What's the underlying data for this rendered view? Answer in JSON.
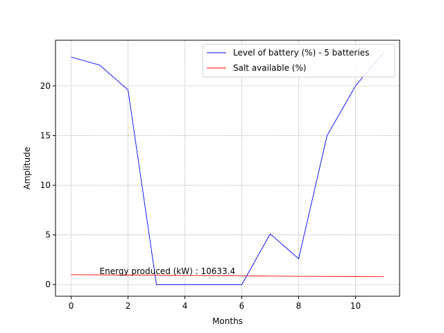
{
  "chart_data": {
    "type": "line",
    "x": [
      0,
      1,
      2,
      3,
      4,
      5,
      6,
      7,
      8,
      9,
      10,
      11
    ],
    "series": [
      {
        "name": "Level of battery (%) - 5 batteries",
        "color": "#0000ff",
        "values": [
          22.9,
          22.1,
          19.6,
          0.0,
          0.0,
          0.0,
          0.0,
          5.1,
          2.6,
          15.0,
          20.0,
          23.4
        ]
      },
      {
        "name": "Salt available (%)",
        "color": "#ff0000",
        "values": [
          1.0,
          0.98,
          0.96,
          0.94,
          0.92,
          0.9,
          0.88,
          0.86,
          0.84,
          0.83,
          0.82,
          0.81
        ]
      }
    ],
    "xlabel": "Months",
    "ylabel": "Amplitude",
    "xlim": [
      -0.55,
      11.55
    ],
    "ylim": [
      -1.17,
      24.6
    ],
    "xticks": [
      0,
      2,
      4,
      6,
      8,
      10
    ],
    "yticks": [
      0,
      5,
      10,
      15,
      20
    ],
    "grid": true,
    "legend_position": "top-right",
    "annotation": {
      "text": "Energy produced (kW) : 10633.4",
      "x": 1.0,
      "y": 1.0
    }
  }
}
